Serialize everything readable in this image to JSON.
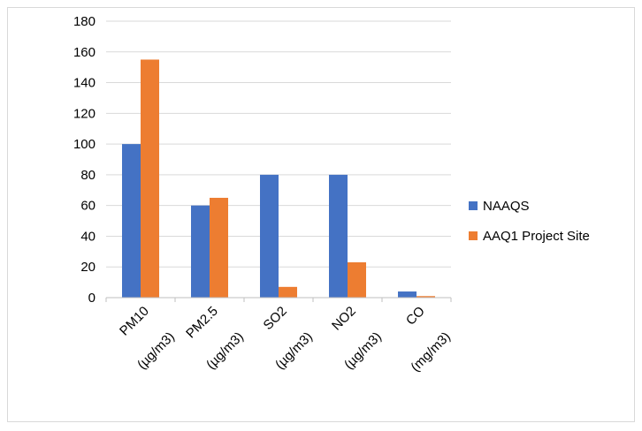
{
  "chart_data": {
    "type": "bar",
    "categories": [
      "PM10 (µg/m3)",
      "PM2.5 (µg/m3)",
      "SO2 (µg/m3)",
      "NO2 (µg/m3)",
      "CO (mg/m3)"
    ],
    "category_lines": [
      [
        "PM10",
        "(µg/m3)"
      ],
      [
        "PM2.5",
        "(µg/m3)"
      ],
      [
        "SO2",
        "(µg/m3)"
      ],
      [
        "NO2",
        "(µg/m3)"
      ],
      [
        "CO",
        "(mg/m3)"
      ]
    ],
    "series": [
      {
        "name": "NAAQS",
        "color": "#4472C4",
        "values": [
          100,
          60,
          80,
          80,
          4
        ]
      },
      {
        "name": "AAQ1 Project Site",
        "color": "#ED7D31",
        "values": [
          155,
          65,
          7,
          23,
          1
        ]
      }
    ],
    "ylim": [
      0,
      180
    ],
    "yticks": [
      "0",
      "20",
      "40",
      "60",
      "80",
      "100",
      "120",
      "140",
      "160",
      "180"
    ],
    "xlabel": "",
    "ylabel": "",
    "title": "",
    "grid": true,
    "legend_position": "right"
  }
}
